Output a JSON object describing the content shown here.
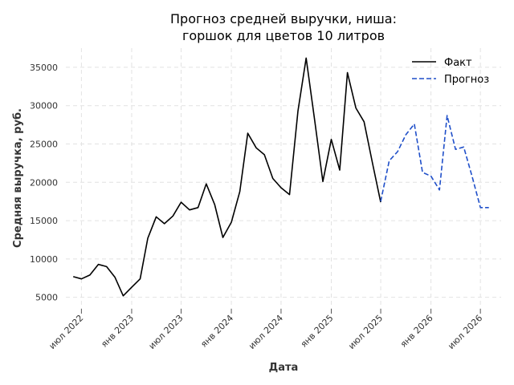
{
  "chart_data": {
    "type": "line",
    "title_lines": [
      "Прогноз средней выручки, ниша:",
      "горшок для цветов 10 литров"
    ],
    "xlabel": "Дата",
    "ylabel": "Средняя выручка, руб.",
    "ylim": [
      3500,
      37500
    ],
    "yticks": [
      5000,
      10000,
      15000,
      20000,
      25000,
      30000,
      35000
    ],
    "xlim": [
      "2022-05-05",
      "2026-09-15"
    ],
    "xticks": [
      {
        "date": "2022-07-01",
        "label": "июл 2022"
      },
      {
        "date": "2023-01-01",
        "label": "янв 2023"
      },
      {
        "date": "2023-07-01",
        "label": "июл 2023"
      },
      {
        "date": "2024-01-01",
        "label": "янв 2024"
      },
      {
        "date": "2024-07-01",
        "label": "июл 2024"
      },
      {
        "date": "2025-01-01",
        "label": "янв 2025"
      },
      {
        "date": "2025-07-01",
        "label": "июл 2025"
      },
      {
        "date": "2026-01-01",
        "label": "янв 2026"
      },
      {
        "date": "2026-07-01",
        "label": "июл 2026"
      }
    ],
    "grid": true,
    "legend_position": "top-right",
    "series": [
      {
        "name": "Факт",
        "color": "#000000",
        "style": "solid",
        "x": [
          "2022-06-01",
          "2022-07-01",
          "2022-08-01",
          "2022-09-01",
          "2022-10-01",
          "2022-11-01",
          "2022-12-01",
          "2023-01-01",
          "2023-02-01",
          "2023-03-01",
          "2023-04-01",
          "2023-05-01",
          "2023-06-01",
          "2023-07-01",
          "2023-08-01",
          "2023-09-01",
          "2023-10-01",
          "2023-11-01",
          "2023-12-01",
          "2024-01-01",
          "2024-02-01",
          "2024-03-01",
          "2024-04-01",
          "2024-05-01",
          "2024-06-01",
          "2024-07-01",
          "2024-08-01",
          "2024-09-01",
          "2024-10-01",
          "2024-11-01",
          "2024-12-01",
          "2025-01-01",
          "2025-02-01",
          "2025-03-01",
          "2025-04-01",
          "2025-05-01",
          "2025-06-01",
          "2025-07-01"
        ],
        "y": [
          7700,
          7400,
          7900,
          9300,
          9000,
          7600,
          5200,
          6300,
          7400,
          12700,
          15500,
          14600,
          15600,
          17400,
          16400,
          16700,
          19800,
          17100,
          12800,
          14800,
          18800,
          26400,
          24500,
          23600,
          20500,
          19300,
          18400,
          29300,
          36200,
          28100,
          20100,
          25600,
          21600,
          34300,
          29700,
          27900,
          22500,
          17400
        ]
      },
      {
        "name": "Прогноз",
        "color": "#1f4fc9",
        "style": "dashed",
        "x": [
          "2025-07-01",
          "2025-08-01",
          "2025-09-01",
          "2025-10-01",
          "2025-11-01",
          "2025-12-01",
          "2026-01-01",
          "2026-02-01",
          "2026-03-01",
          "2026-04-01",
          "2026-05-01",
          "2026-06-01",
          "2026-07-01",
          "2026-08-01"
        ],
        "y": [
          17500,
          22800,
          24000,
          26200,
          27600,
          21300,
          20800,
          19000,
          28700,
          24300,
          24600,
          20700,
          16700,
          16700
        ]
      }
    ]
  }
}
